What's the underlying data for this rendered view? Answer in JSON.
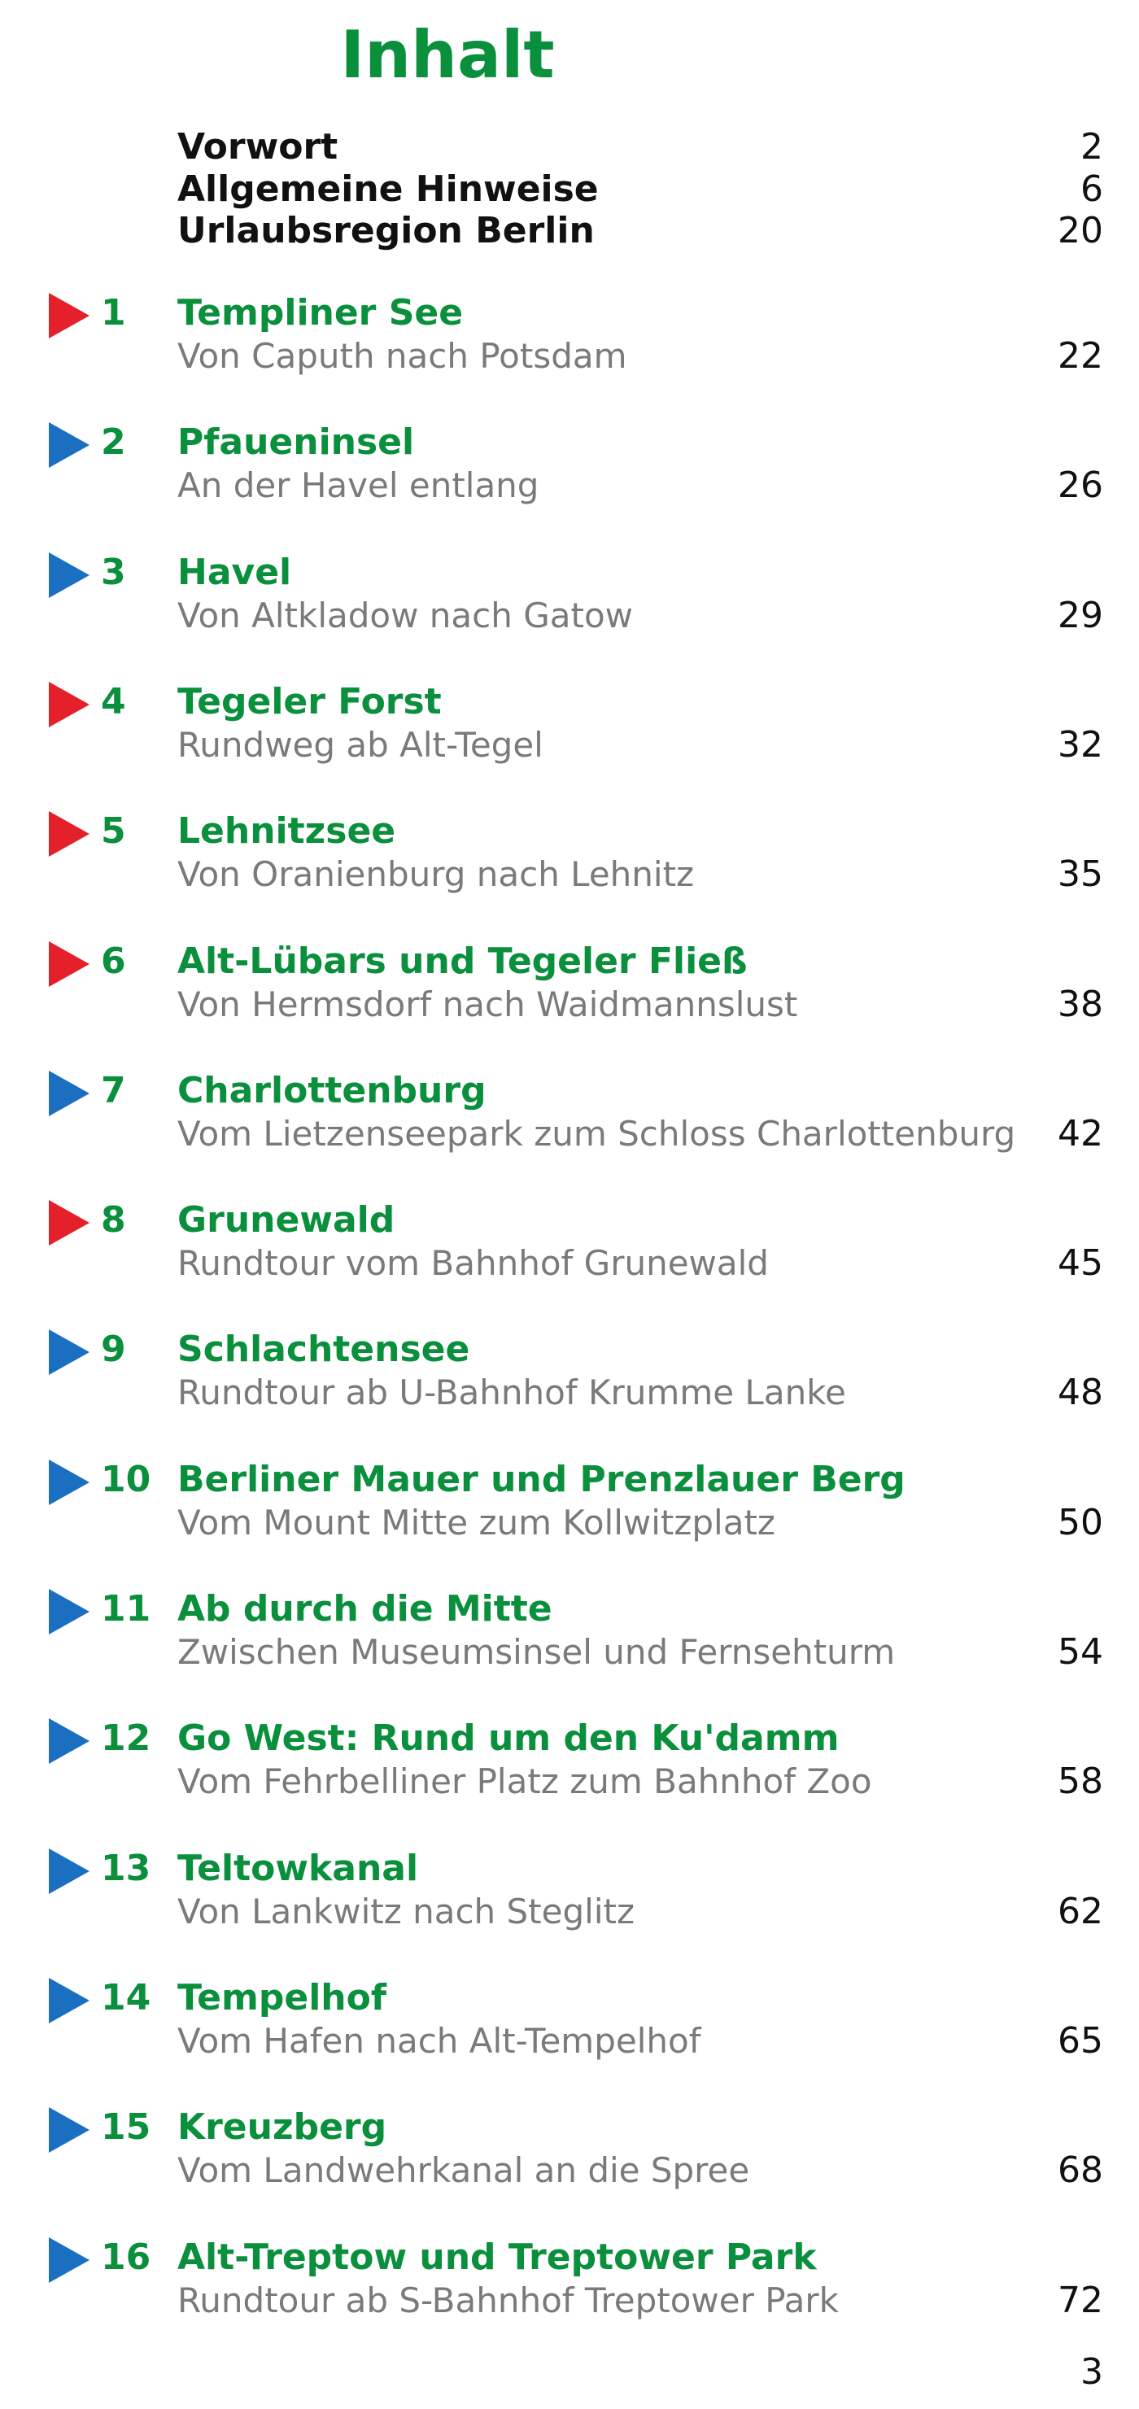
{
  "title": "Inhalt",
  "intro": [
    {
      "label": "Vorwort",
      "page": "2"
    },
    {
      "label": "Allgemeine Hinweise",
      "page": "6"
    },
    {
      "label": "Urlaubsregion Berlin",
      "page": "20"
    }
  ],
  "entries": [
    {
      "number": "1",
      "marker_color": "red",
      "title": "Templiner See",
      "subtitle": "Von Caputh nach Potsdam",
      "page": "22"
    },
    {
      "number": "2",
      "marker_color": "blue",
      "title": "Pfaueninsel",
      "subtitle": "An der Havel entlang",
      "page": "26"
    },
    {
      "number": "3",
      "marker_color": "blue",
      "title": "Havel",
      "subtitle": "Von Altkladow nach Gatow",
      "page": "29"
    },
    {
      "number": "4",
      "marker_color": "red",
      "title": "Tegeler Forst",
      "subtitle": "Rundweg ab Alt-Tegel",
      "page": "32"
    },
    {
      "number": "5",
      "marker_color": "red",
      "title": "Lehnitzsee",
      "subtitle": "Von Oranienburg nach Lehnitz",
      "page": "35"
    },
    {
      "number": "6",
      "marker_color": "red",
      "title": "Alt-Lübars und Tegeler Fließ",
      "subtitle": "Von Hermsdorf nach Waidmannslust",
      "page": "38"
    },
    {
      "number": "7",
      "marker_color": "blue",
      "title": "Charlottenburg",
      "subtitle": "Vom Lietzenseepark zum Schloss Charlottenburg",
      "page": "42"
    },
    {
      "number": "8",
      "marker_color": "red",
      "title": "Grunewald",
      "subtitle": "Rundtour vom Bahnhof Grunewald",
      "page": "45"
    },
    {
      "number": "9",
      "marker_color": "blue",
      "title": "Schlachtensee",
      "subtitle": "Rundtour ab U-Bahnhof Krumme Lanke",
      "page": "48"
    },
    {
      "number": "10",
      "marker_color": "blue",
      "title": "Berliner Mauer und Prenzlauer Berg",
      "subtitle": "Vom Mount Mitte zum Kollwitzplatz",
      "page": "50"
    },
    {
      "number": "11",
      "marker_color": "blue",
      "title": "Ab durch die Mitte",
      "subtitle": "Zwischen Museumsinsel und Fernsehturm",
      "page": "54"
    },
    {
      "number": "12",
      "marker_color": "blue",
      "title": "Go West: Rund um den Ku'damm",
      "subtitle": "Vom Fehrbelliner Platz zum Bahnhof Zoo",
      "page": "58"
    },
    {
      "number": "13",
      "marker_color": "blue",
      "title": "Teltowkanal",
      "subtitle": "Von Lankwitz nach Steglitz",
      "page": "62"
    },
    {
      "number": "14",
      "marker_color": "blue",
      "title": "Tempelhof",
      "subtitle": "Vom Hafen nach Alt-Tempelhof",
      "page": "65"
    },
    {
      "number": "15",
      "marker_color": "blue",
      "title": "Kreuzberg",
      "subtitle": "Vom Landwehrkanal an die Spree",
      "page": "68"
    },
    {
      "number": "16",
      "marker_color": "blue",
      "title": "Alt-Treptow und Treptower Park",
      "subtitle": "Rundtour ab S-Bahnhof Treptower Park",
      "page": "72"
    }
  ],
  "page_number": "3",
  "colors": {
    "title_green": "#0a8f3c",
    "marker_red": "#e4202a",
    "marker_blue": "#1a6fc1",
    "subtitle_gray": "#7a7a7a"
  }
}
